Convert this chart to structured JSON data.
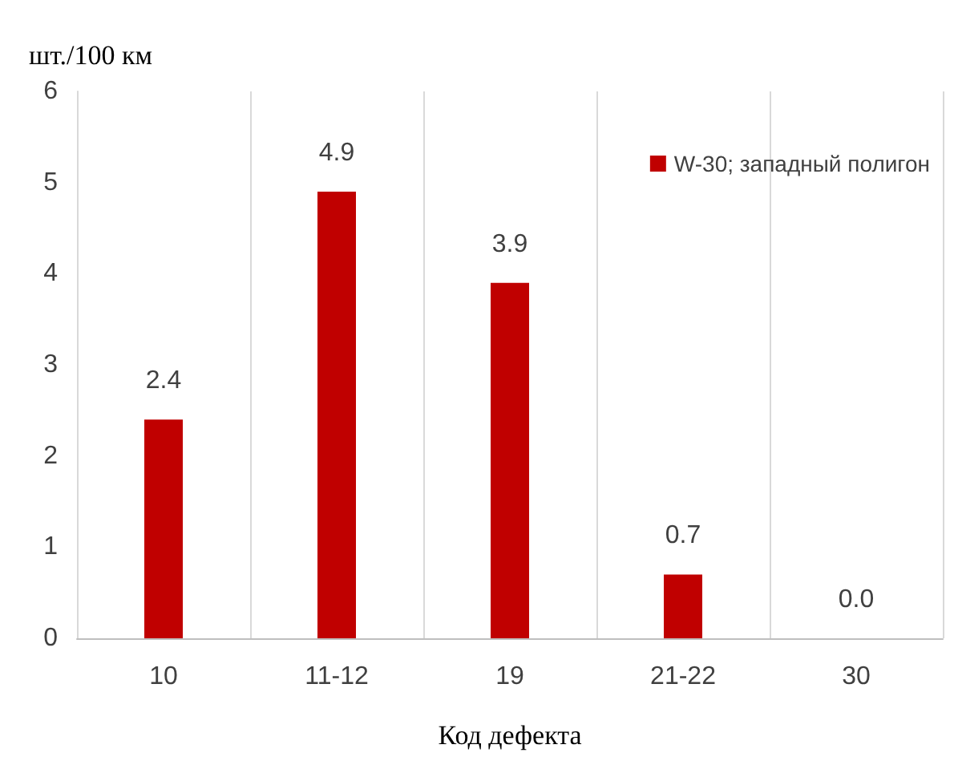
{
  "chart_data": {
    "type": "bar",
    "ylabel": "шт./100 км",
    "xlabel": "Код дефекта",
    "categories": [
      "10",
      "11-12",
      "19",
      "21-22",
      "30"
    ],
    "series": [
      {
        "name": "W-30; западный полигон",
        "color": "#c00000",
        "values": [
          2.4,
          4.9,
          3.9,
          0.7,
          0.0
        ],
        "value_labels": [
          "2.4",
          "4.9",
          "3.9",
          "0.7",
          "0.0"
        ]
      }
    ],
    "ylim": [
      0,
      6
    ],
    "yticks": [
      0,
      1,
      2,
      3,
      4,
      5,
      6
    ],
    "grid": "x",
    "legend": "top right"
  }
}
